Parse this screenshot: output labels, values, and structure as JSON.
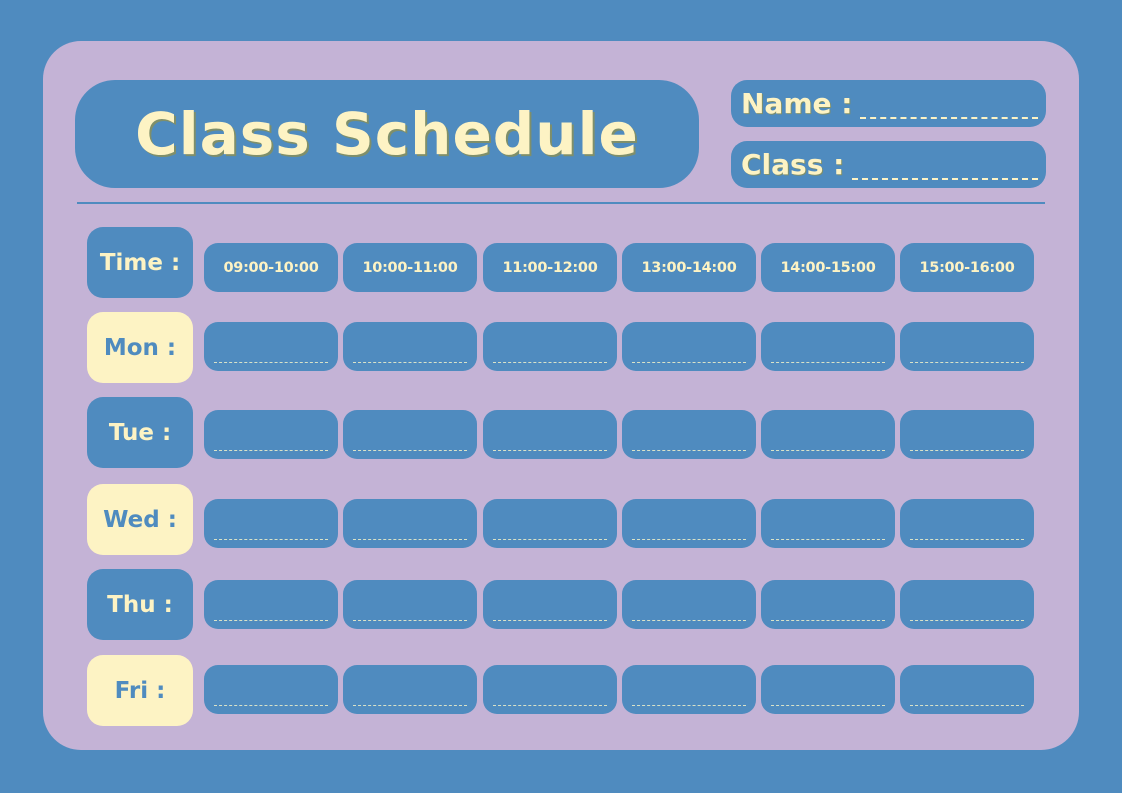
{
  "title": "Class Schedule",
  "fields": {
    "name_label": "Name :",
    "class_label": "Class :"
  },
  "time_label": "Time :",
  "times": [
    "09:00-10:00",
    "10:00-11:00",
    "11:00-12:00",
    "13:00-14:00",
    "14:00-15:00",
    "15:00-16:00"
  ],
  "days": [
    "Mon :",
    "Tue :",
    "Wed :",
    "Thu :",
    "Fri :"
  ],
  "colors": {
    "background": "#4f8bbf",
    "card": "#c4b3d6",
    "cream": "#fdf3c4"
  }
}
